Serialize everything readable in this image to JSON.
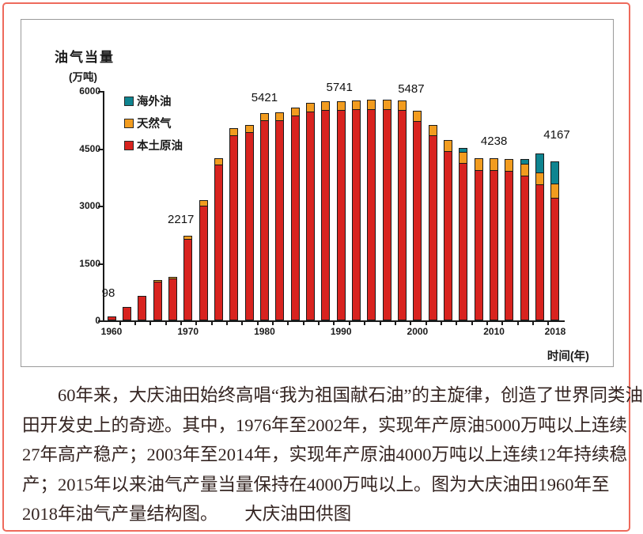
{
  "frame": {
    "border_color": "#ee6a5c"
  },
  "chart": {
    "title": "油气当量",
    "unit_label": "(万吨)",
    "x_axis_title": "时间(年)",
    "legend": [
      {
        "label": "海外油",
        "color": "#0e8490"
      },
      {
        "label": "天然气",
        "color": "#f29c1f"
      },
      {
        "label": "本土原油",
        "color": "#d8231f"
      }
    ]
  },
  "chart_data": {
    "type": "bar",
    "stacked": true,
    "title": "油气当量(万吨)",
    "xlabel": "时间(年)",
    "ylabel": "油气当量(万吨)",
    "ylim": [
      0,
      6000
    ],
    "yticks": [
      0,
      1500,
      3000,
      4500,
      6000
    ],
    "xtick_years": [
      1960,
      1970,
      1980,
      1990,
      2000,
      2010,
      2018
    ],
    "grid": false,
    "legend_position": "top-left",
    "years": [
      1960,
      1962,
      1964,
      1966,
      1968,
      1970,
      1972,
      1974,
      1976,
      1978,
      1980,
      1982,
      1984,
      1986,
      1988,
      1990,
      1992,
      1994,
      1996,
      1998,
      2000,
      2002,
      2004,
      2006,
      2008,
      2010,
      2012,
      2014,
      2016,
      2018
    ],
    "series": [
      {
        "name": "本土原油",
        "color": "#d8231f",
        "values": [
          98,
          350,
          635,
          1010,
          1090,
          2130,
          3000,
          4080,
          4850,
          4930,
          5230,
          5240,
          5350,
          5460,
          5510,
          5511,
          5515,
          5530,
          5530,
          5490,
          5227,
          4840,
          4430,
          4120,
          3950,
          3933,
          3920,
          3790,
          3560,
          3200
        ]
      },
      {
        "name": "天然气",
        "color": "#f29c1f",
        "values": [
          0,
          0,
          0,
          40,
          45,
          87,
          150,
          170,
          180,
          190,
          191,
          200,
          210,
          220,
          230,
          230,
          235,
          245,
          250,
          255,
          260,
          270,
          285,
          285,
          300,
          305,
          310,
          310,
          300,
          380
        ]
      },
      {
        "name": "海外油",
        "color": "#0e8490",
        "values": [
          0,
          0,
          0,
          0,
          0,
          0,
          0,
          0,
          0,
          0,
          0,
          0,
          0,
          0,
          0,
          0,
          0,
          0,
          0,
          0,
          0,
          0,
          0,
          95,
          0,
          0,
          0,
          120,
          500,
          587
        ]
      }
    ],
    "totals": [
      98,
      350,
      635,
      1050,
      1135,
      2217,
      3150,
      4250,
      5030,
      5120,
      5421,
      5440,
      5560,
      5680,
      5740,
      5741,
      5750,
      5775,
      5780,
      5745,
      5487,
      5110,
      4715,
      4500,
      4250,
      4238,
      4230,
      4220,
      4360,
      4167
    ],
    "point_labels": [
      {
        "year": 1960,
        "text": "98"
      },
      {
        "year": 1970,
        "text": "2217"
      },
      {
        "year": 1980,
        "text": "5421"
      },
      {
        "year": 1990,
        "text": "5741"
      },
      {
        "year": 2000,
        "text": "5487"
      },
      {
        "year": 2010,
        "text": "4238"
      },
      {
        "year": 2018,
        "text": "4167"
      }
    ]
  },
  "caption": {
    "lines": [
      "60年来，大庆油田始终高唱“我为祖国献石油”的主旋律，创造了世界同类油",
      "田开发史上的奇迹。其中，1976年至2002年，实现年产原油5000万吨以上连续",
      "27年高产稳产；2003年至2014年，实现年产原油4000万吨以上连续12年持续稳",
      "产；2015年以来油气产量当量保持在4000万吨以上。图为大庆油田1960年至",
      "2018年油气产量结构图。　　大庆油田供图"
    ]
  }
}
